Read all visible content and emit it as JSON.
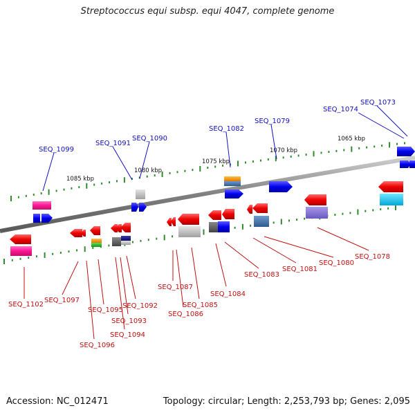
{
  "title": "Streptococcus equi subsp. equi 4047, complete genome",
  "accession": "Accession: NC_012471",
  "stats": "Topology: circular; Length: 2,253,793 bp; Genes: 2,095",
  "kbp_ticks": [
    "1085 kbp",
    "1080 kbp",
    "1075 kbp",
    "1070 kbp",
    "1065 kbp"
  ],
  "top_labels": [
    "SEQ_1099",
    "SEQ_1091",
    "SEQ_1090",
    "SEQ_1082",
    "SEQ_1079",
    "SEQ_1074",
    "SEQ_1073"
  ],
  "bottom_labels": [
    "SEQ_1102",
    "SEQ_1097",
    "SEQ_1096",
    "SEQ_1095",
    "SEQ_1094",
    "SEQ_1093",
    "SEQ_1092",
    "SEQ_1087",
    "SEQ_1086",
    "SEQ_1085",
    "SEQ_1084",
    "SEQ_1083",
    "SEQ_1081",
    "SEQ_1080",
    "SEQ_1078"
  ],
  "colors": {
    "forward_label": "#1010c0",
    "reverse_label": "#c01010",
    "backbone": "#888888",
    "tick": "#2e8b2e"
  }
}
